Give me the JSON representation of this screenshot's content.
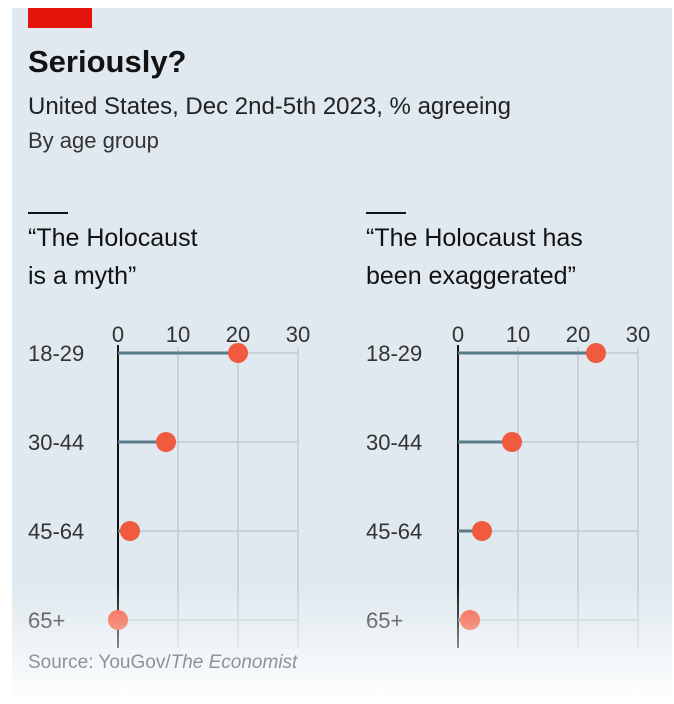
{
  "header": {
    "title": "Seriously?",
    "subtitle": "United States, Dec 2nd-5th 2023, % agreeing",
    "subtitle2": "By age group",
    "accent_color": "#e3120b"
  },
  "source": {
    "prefix": "Source: YouGov/",
    "italic": "The Economist"
  },
  "colors": {
    "dot": "#f05a3e",
    "stem": "#5b7a8a",
    "grid": "#bfcbd2",
    "axis": "#121212"
  },
  "chart_data": [
    {
      "type": "dot",
      "title_lines": [
        "“The Holocaust",
        "is a myth”"
      ],
      "categories": [
        "18-29",
        "30-44",
        "45-64",
        "65+"
      ],
      "values": [
        20,
        8,
        2,
        0
      ],
      "xticks": [
        0,
        10,
        20,
        30
      ],
      "xlim": [
        0,
        30
      ]
    },
    {
      "type": "dot",
      "title_lines": [
        "“The Holocaust has",
        "been exaggerated”"
      ],
      "categories": [
        "18-29",
        "30-44",
        "45-64",
        "65+"
      ],
      "values": [
        23,
        9,
        4,
        2
      ],
      "xticks": [
        0,
        10,
        20,
        30
      ],
      "xlim": [
        0,
        30
      ]
    }
  ]
}
